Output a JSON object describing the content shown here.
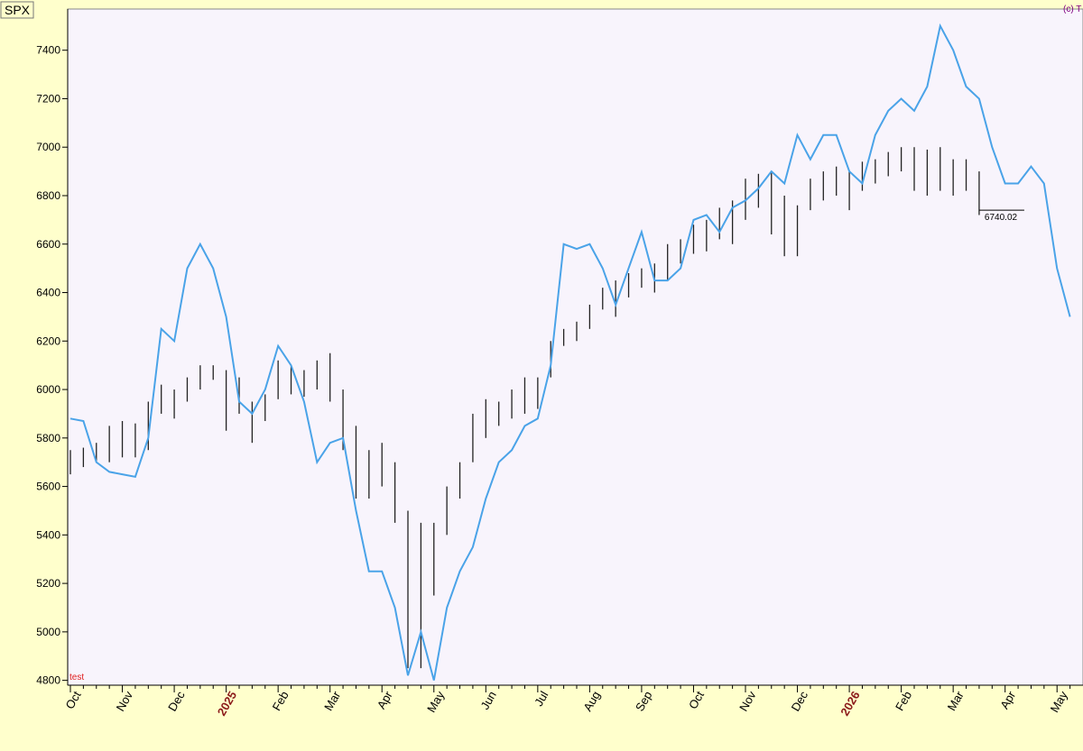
{
  "chart_data": {
    "type": "hilo",
    "title": "SPX",
    "copyright": "(c) T",
    "note": "test",
    "categories": [
      "Oct",
      null,
      null,
      null,
      "Nov",
      null,
      null,
      null,
      "Dec",
      null,
      null,
      null,
      "2025",
      null,
      null,
      null,
      "Feb",
      null,
      null,
      null,
      "Mar",
      null,
      null,
      null,
      "Apr",
      null,
      null,
      null,
      "May",
      null,
      null,
      null,
      "Jun",
      null,
      null,
      null,
      "Jul",
      null,
      null,
      null,
      "Aug",
      null,
      null,
      null,
      "Sep",
      null,
      null,
      null,
      "Oct",
      null,
      null,
      null,
      "Nov",
      null,
      null,
      null,
      "Dec",
      null,
      null,
      null,
      "2026",
      null,
      null,
      null,
      "Feb",
      null,
      null,
      null,
      "Mar",
      null,
      null,
      null,
      "Apr",
      null,
      null,
      null,
      "May",
      null
    ],
    "bars": {
      "color": "#222222",
      "high": [
        5750,
        5760,
        5780,
        5850,
        5870,
        5860,
        5950,
        6020,
        6000,
        6050,
        6100,
        6100,
        6080,
        6050,
        5950,
        5980,
        6120,
        6100,
        6080,
        6120,
        6150,
        6000,
        5850,
        5750,
        5780,
        5700,
        5500,
        5450,
        5450,
        5600,
        5700,
        5900,
        5960,
        5950,
        6000,
        6050,
        6050,
        6200,
        6250,
        6280,
        6350,
        6420,
        6450,
        6480,
        6500,
        6520,
        6600,
        6620,
        6680,
        6700,
        6750,
        6780,
        6870,
        6890,
        6900,
        6800,
        6760,
        6870,
        6900,
        6920,
        6900,
        6940,
        6950,
        6980,
        7000,
        7000,
        6990,
        7000,
        6950,
        6950,
        6900,
        null,
        null,
        null,
        null,
        null,
        null,
        null
      ],
      "low": [
        5650,
        5680,
        5700,
        5700,
        5720,
        5720,
        5750,
        5900,
        5880,
        5950,
        6000,
        6040,
        5830,
        5900,
        5780,
        5870,
        5960,
        5980,
        5970,
        6000,
        5950,
        5750,
        5550,
        5550,
        5600,
        5450,
        4850,
        4850,
        5150,
        5400,
        5550,
        5700,
        5800,
        5850,
        5880,
        5900,
        5920,
        6050,
        6180,
        6200,
        6250,
        6330,
        6300,
        6380,
        6420,
        6400,
        6450,
        6520,
        6560,
        6570,
        6620,
        6600,
        6700,
        6750,
        6640,
        6550,
        6550,
        6740,
        6780,
        6800,
        6740,
        6820,
        6850,
        6880,
        6900,
        6820,
        6800,
        6820,
        6800,
        6820,
        6720,
        null,
        null,
        null,
        null,
        null,
        null,
        null
      ]
    },
    "line": {
      "color": "#4aa3e8",
      "values": [
        5880,
        5870,
        5700,
        5660,
        5650,
        5640,
        5800,
        6250,
        6200,
        6500,
        6600,
        6500,
        6300,
        5950,
        5900,
        6000,
        6180,
        6100,
        5950,
        5700,
        5780,
        5800,
        5500,
        5250,
        5250,
        5100,
        4820,
        5000,
        4800,
        5100,
        5250,
        5350,
        5550,
        5700,
        5750,
        5850,
        5880,
        6100,
        6600,
        6580,
        6600,
        6500,
        6350,
        6500,
        6650,
        6450,
        6450,
        6500,
        6700,
        6720,
        6650,
        6750,
        6780,
        6830,
        6900,
        6850,
        7050,
        6950,
        7050,
        7050,
        6900,
        6850,
        7050,
        7150,
        7200,
        7150,
        7250,
        7500,
        7400,
        7250,
        7200,
        7000,
        6850,
        6850,
        6920,
        6850,
        6500,
        6300
      ]
    },
    "last_value": 6740.02,
    "ylim": [
      4780,
      7570
    ],
    "yticks": [
      4800,
      5000,
      5200,
      5400,
      5600,
      5800,
      6000,
      6200,
      6400,
      6600,
      6800,
      7000,
      7200,
      7400
    ]
  }
}
